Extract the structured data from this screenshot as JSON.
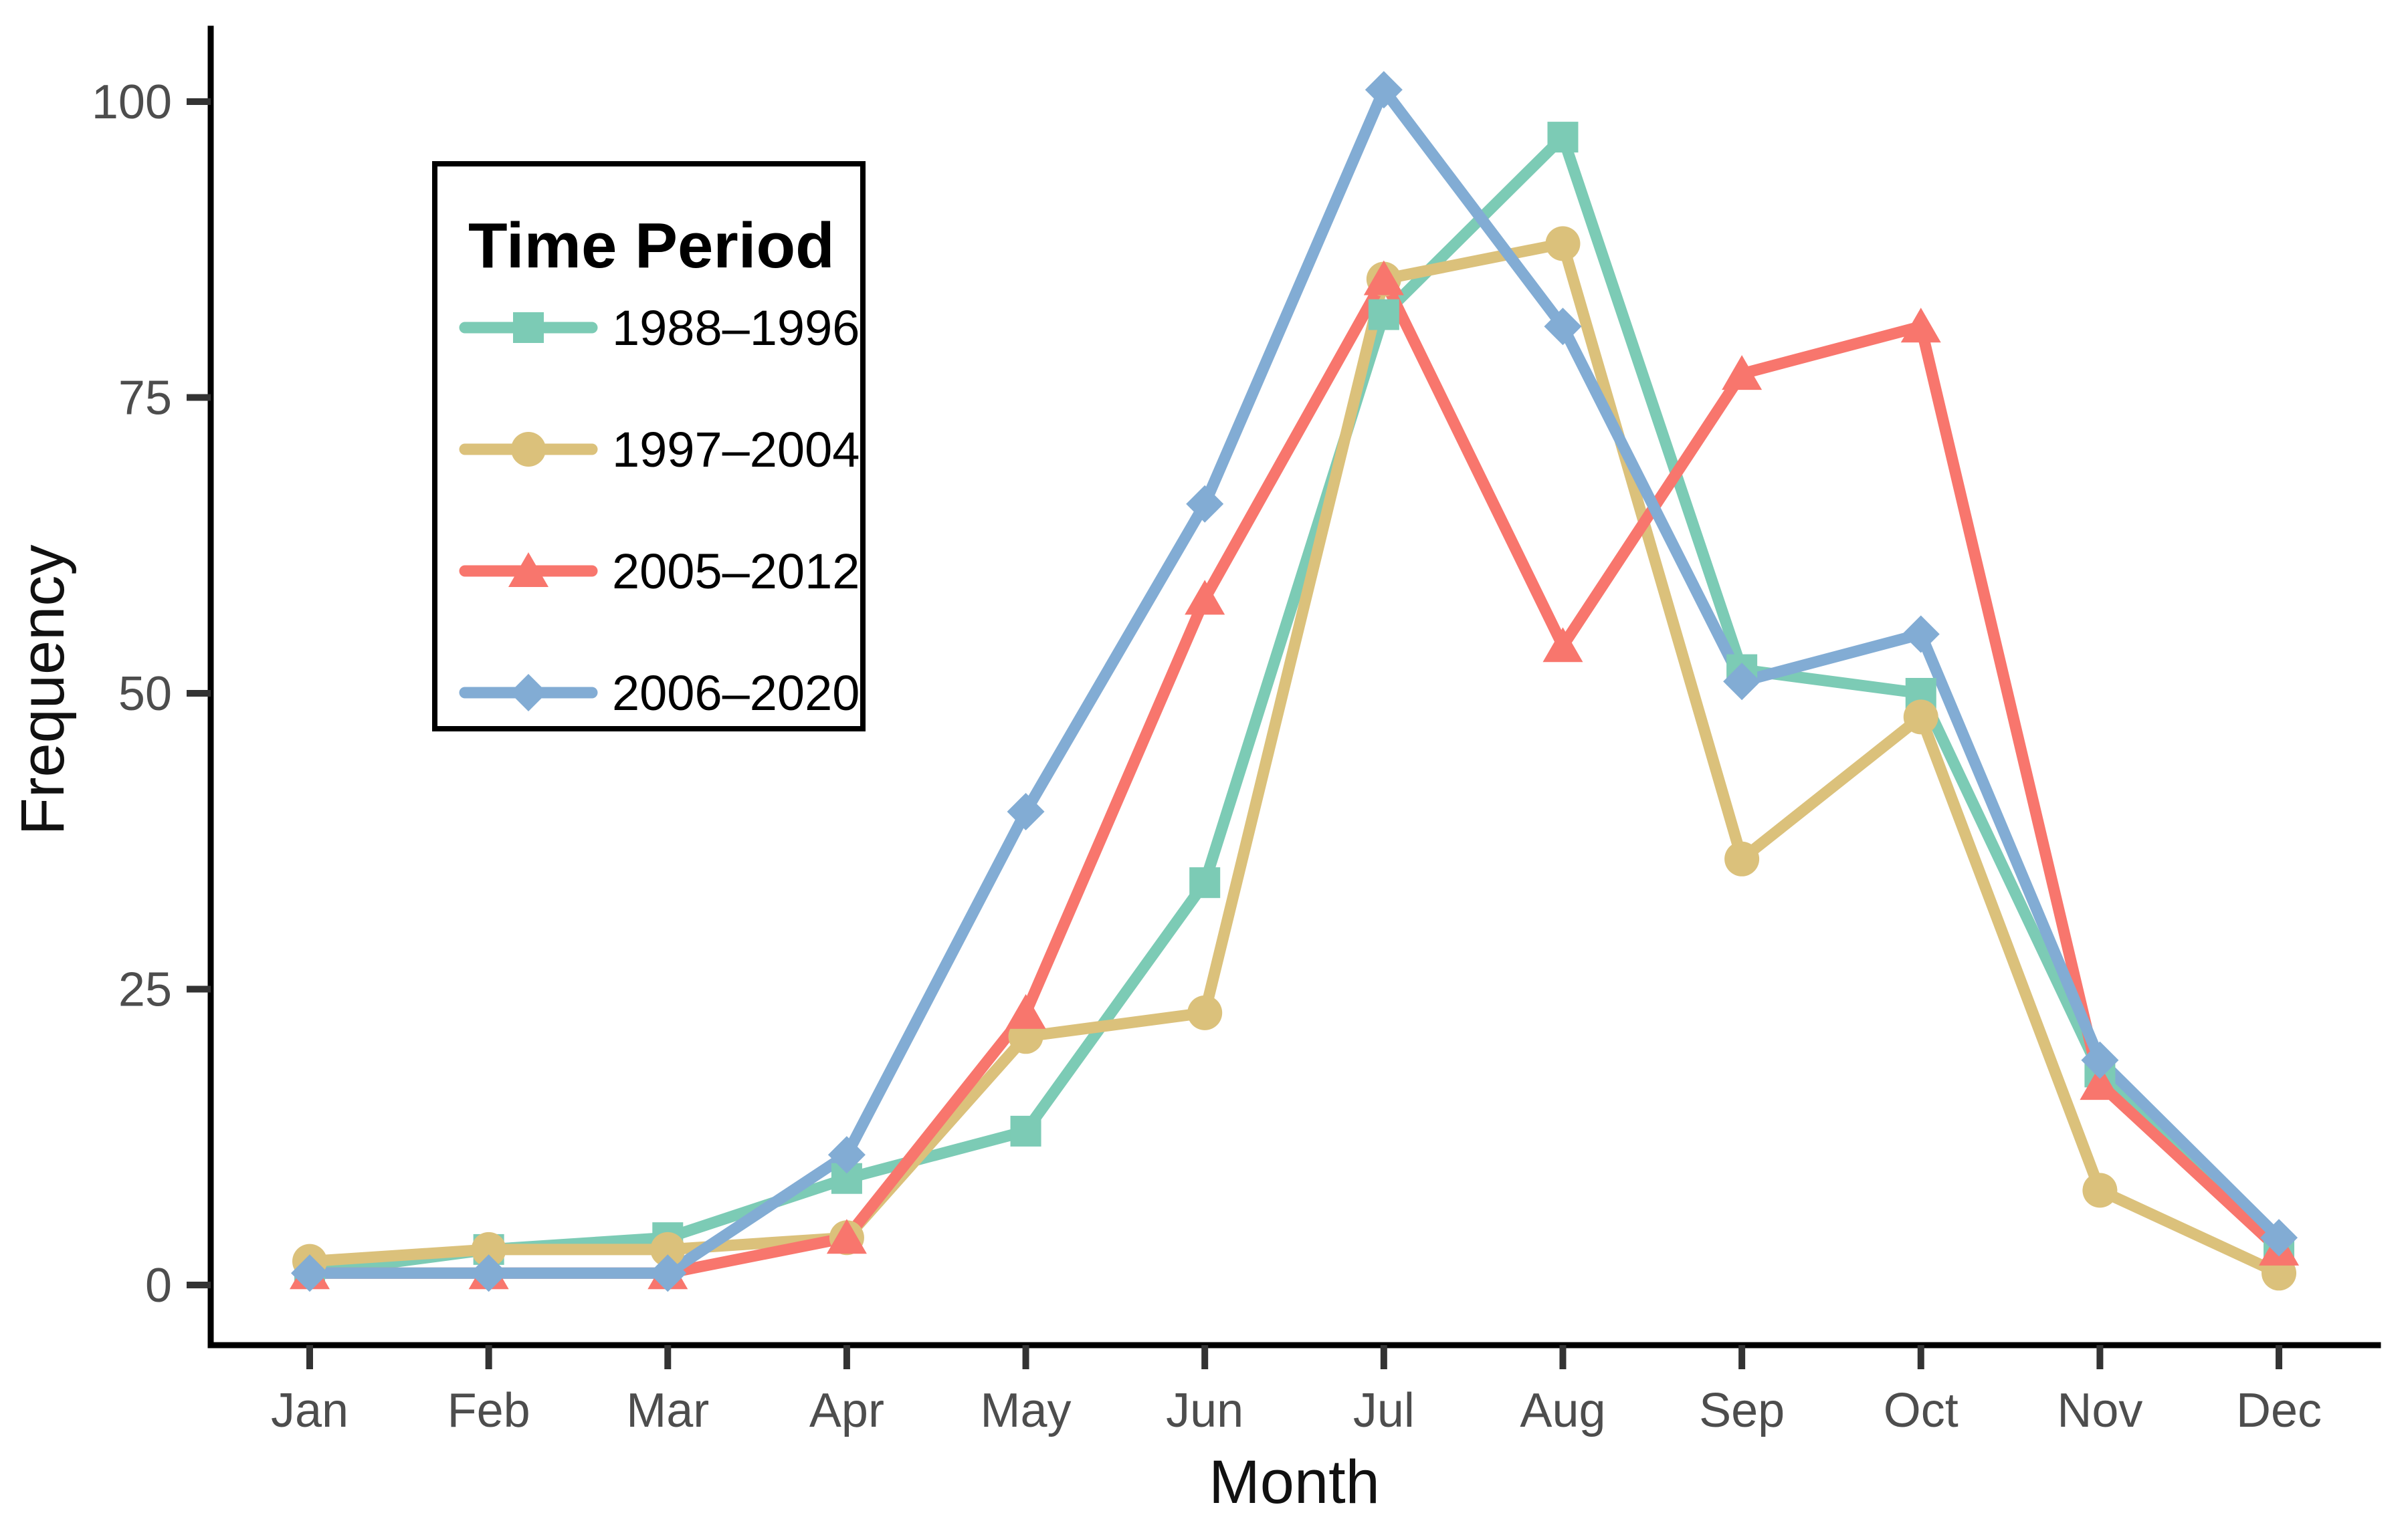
{
  "figure": {
    "background": "#FFFFFF",
    "axis_line_color": "#000000",
    "tick_color": "#333333",
    "tick_label_color": "#4D4D4D",
    "axis_title_color": "#111111"
  },
  "chart_data": {
    "type": "line",
    "title": "",
    "xlabel": "Month",
    "ylabel": "Frequency",
    "categories": [
      "Jan",
      "Feb",
      "Mar",
      "Apr",
      "May",
      "Jun",
      "Jul",
      "Aug",
      "Sep",
      "Oct",
      "Nov",
      "Dec"
    ],
    "ylim": [
      0,
      103
    ],
    "yticks": [
      0,
      25,
      50,
      75,
      100
    ],
    "grid": false,
    "legend": {
      "title": "Time Period",
      "position": "top-left-inside"
    },
    "series": [
      {
        "name": "1988–1996",
        "color": "#7CCBB5",
        "marker": "square",
        "values": [
          1,
          3,
          4,
          9,
          13,
          34,
          82,
          97,
          52,
          50,
          18,
          3
        ]
      },
      {
        "name": "1997–2004",
        "color": "#DBC17B",
        "marker": "circle",
        "values": [
          2,
          3,
          3,
          4,
          21,
          23,
          85,
          88,
          36,
          48,
          8,
          1
        ]
      },
      {
        "name": "2005–2012",
        "color": "#F8766D",
        "marker": "triangle",
        "values": [
          1,
          1,
          1,
          4,
          23,
          58,
          85,
          54,
          77,
          81,
          17,
          3
        ]
      },
      {
        "name": "2006–2020",
        "color": "#82ACD4",
        "marker": "diamond",
        "values": [
          1,
          1,
          1,
          11,
          40,
          66,
          101,
          81,
          51,
          55,
          19,
          4
        ]
      }
    ]
  }
}
